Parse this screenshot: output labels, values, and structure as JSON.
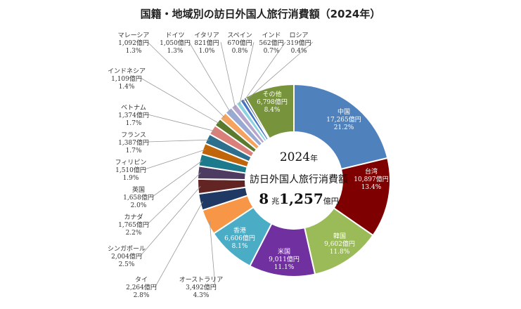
{
  "title": "国籍・地域別の訪日外国人旅行消費額（2024年）",
  "center": {
    "year": "2024",
    "year_suffix": "年",
    "subtitle": "訪日外国人旅行消費額",
    "total_a": "8",
    "unit_a": "兆",
    "total_b": "1,257",
    "unit_b": "億円"
  },
  "chart_data": {
    "type": "pie",
    "title": "国籍・地域別の訪日外国人旅行消費額（2024年）",
    "unit": "億円",
    "total": "8兆1,257億円",
    "slices": [
      {
        "name": "中国",
        "value": 17265,
        "value_text": "17,265億円",
        "pct": "21.2%",
        "color": "#4f81bd"
      },
      {
        "name": "台湾",
        "value": 10897,
        "value_text": "10,897億円",
        "pct": "13.4%",
        "color": "#7f0000"
      },
      {
        "name": "韓国",
        "value": 9602,
        "value_text": "9,602億円",
        "pct": "11.8%",
        "color": "#9bbb59"
      },
      {
        "name": "米国",
        "value": 9011,
        "value_text": "9,011億円",
        "pct": "11.1%",
        "color": "#7030a0"
      },
      {
        "name": "香港",
        "value": 6606,
        "value_text": "6,606億円",
        "pct": "8.1%",
        "color": "#4bacc6"
      },
      {
        "name": "オーストラリア",
        "value": 3492,
        "value_text": "3,492億円",
        "pct": "4.3%",
        "color": "#f79646"
      },
      {
        "name": "タイ",
        "value": 2264,
        "value_text": "2,264億円",
        "pct": "2.8%",
        "color": "#1f3864"
      },
      {
        "name": "シンガポール",
        "value": 2004,
        "value_text": "2,004億円",
        "pct": "2.5%",
        "color": "#632523"
      },
      {
        "name": "カナダ",
        "value": 1765,
        "value_text": "1,765億円",
        "pct": "2.2%",
        "color": "#4e3b62"
      },
      {
        "name": "英国",
        "value": 1658,
        "value_text": "1,658億円",
        "pct": "2.0%",
        "color": "#1d7a8c"
      },
      {
        "name": "フィリピン",
        "value": 1510,
        "value_text": "1,510億円",
        "pct": "1.9%",
        "color": "#c0650a"
      },
      {
        "name": "フランス",
        "value": 1387,
        "value_text": "1,387億円",
        "pct": "1.7%",
        "color": "#2e6f8e"
      },
      {
        "name": "ベトナム",
        "value": 1374,
        "value_text": "1,374億円",
        "pct": "1.7%",
        "color": "#d9807a"
      },
      {
        "name": "インドネシア",
        "value": 1109,
        "value_text": "1,109億円",
        "pct": "1.4%",
        "color": "#5b7a2e"
      },
      {
        "name": "マレーシア",
        "value": 1092,
        "value_text": "1,092億円",
        "pct": "1.3%",
        "color": "#f4a460"
      },
      {
        "name": "ドイツ",
        "value": 1050,
        "value_text": "1,050億円",
        "pct": "1.3%",
        "color": "#9aa9d1"
      },
      {
        "name": "イタリア",
        "value": 821,
        "value_text": "821億円",
        "pct": "1.0%",
        "color": "#b6a5cc"
      },
      {
        "name": "スペイン",
        "value": 670,
        "value_text": "670億円",
        "pct": "0.8%",
        "color": "#8cd3e0"
      },
      {
        "name": "インド",
        "value": 562,
        "value_text": "562億円",
        "pct": "0.7%",
        "color": "#4472c4"
      },
      {
        "name": "ロシア",
        "value": 319,
        "value_text": "319億円",
        "pct": "0.4%",
        "color": "#1f3864"
      },
      {
        "name": "その他",
        "value": 6798,
        "value_text": "6,798億円",
        "pct": "8.4%",
        "color": "#77933c"
      }
    ]
  }
}
